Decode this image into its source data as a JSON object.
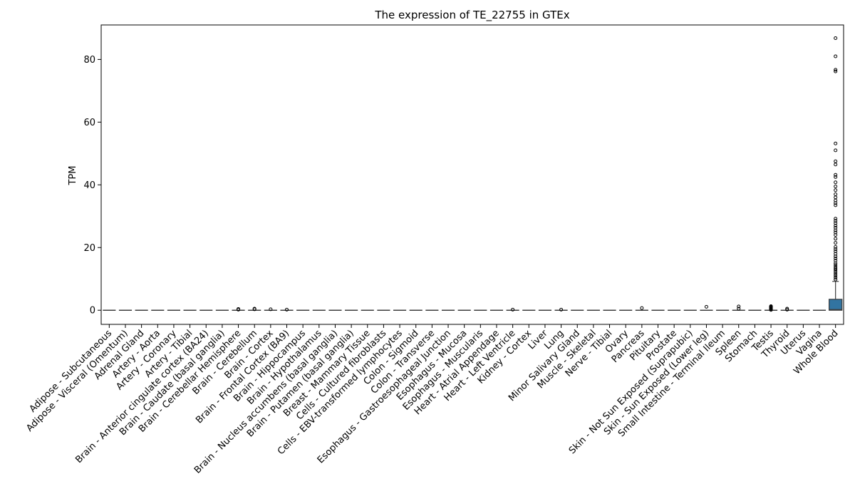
{
  "chart_data": {
    "type": "box",
    "title": "The expression of TE_22755 in GTEx",
    "xlabel": "",
    "ylabel": "TPM",
    "ylim": [
      -4.5,
      91
    ],
    "yticks": [
      0,
      20,
      40,
      60,
      80
    ],
    "grid": false,
    "box_color": "#3274a1",
    "categories": [
      "Adipose - Subcutaneous",
      "Adipose - Visceral (Omentum)",
      "Adrenal Gland",
      "Artery - Aorta",
      "Artery - Coronary",
      "Artery - Tibial",
      "Brain - Anterior cingulate cortex (BA24)",
      "Brain - Caudate (basal ganglia)",
      "Brain - Cerebellar Hemisphere",
      "Brain - Cerebellum",
      "Brain - Cortex",
      "Brain - Frontal Cortex (BA9)",
      "Brain - Hippocampus",
      "Brain - Hypothalamus",
      "Brain - Nucleus accumbens (basal ganglia)",
      "Brain - Putamen (basal ganglia)",
      "Breast - Mammary Tissue",
      "Cells - Cultured fibroblasts",
      "Cells - EBV-transformed lymphocytes",
      "Colon - Sigmoid",
      "Colon - Transverse",
      "Esophagus - Gastroesophageal Junction",
      "Esophagus - Mucosa",
      "Esophagus - Muscularis",
      "Heart - Atrial Appendage",
      "Heart - Left Ventricle",
      "Kidney - Cortex",
      "Liver",
      "Lung",
      "Minor Salivary Gland",
      "Muscle - Skeletal",
      "Nerve - Tibial",
      "Ovary",
      "Pancreas",
      "Pituitary",
      "Prostate",
      "Skin - Not Sun Exposed (Suprapubic)",
      "Skin - Sun Exposed (Lower leg)",
      "Small Intestine - Terminal Ileum",
      "Spleen",
      "Stomach",
      "Testis",
      "Thyroid",
      "Uterus",
      "Vagina",
      "Whole Blood"
    ],
    "boxes": [
      {
        "q1": 0,
        "median": 0,
        "q3": 0,
        "whislo": 0,
        "whishi": 0,
        "fliers": []
      },
      {
        "q1": 0,
        "median": 0,
        "q3": 0,
        "whislo": 0,
        "whishi": 0,
        "fliers": []
      },
      {
        "q1": 0,
        "median": 0,
        "q3": 0,
        "whislo": 0,
        "whishi": 0,
        "fliers": []
      },
      {
        "q1": 0,
        "median": 0,
        "q3": 0,
        "whislo": 0,
        "whishi": 0,
        "fliers": []
      },
      {
        "q1": 0,
        "median": 0,
        "q3": 0,
        "whislo": 0,
        "whishi": 0,
        "fliers": []
      },
      {
        "q1": 0,
        "median": 0,
        "q3": 0,
        "whislo": 0,
        "whishi": 0,
        "fliers": []
      },
      {
        "q1": 0,
        "median": 0,
        "q3": 0,
        "whislo": 0,
        "whishi": 0,
        "fliers": []
      },
      {
        "q1": 0,
        "median": 0,
        "q3": 0,
        "whislo": 0,
        "whishi": 0,
        "fliers": []
      },
      {
        "q1": 0,
        "median": 0,
        "q3": 0,
        "whislo": 0,
        "whishi": 0,
        "fliers": [
          0.2,
          0.4
        ]
      },
      {
        "q1": 0,
        "median": 0,
        "q3": 0,
        "whislo": 0,
        "whishi": 0,
        "fliers": [
          0.3,
          0.5
        ]
      },
      {
        "q1": 0,
        "median": 0,
        "q3": 0,
        "whislo": 0,
        "whishi": 0,
        "fliers": [
          0.3
        ]
      },
      {
        "q1": 0,
        "median": 0,
        "q3": 0,
        "whislo": 0,
        "whishi": 0,
        "fliers": [
          0.2
        ]
      },
      {
        "q1": 0,
        "median": 0,
        "q3": 0,
        "whislo": 0,
        "whishi": 0,
        "fliers": []
      },
      {
        "q1": 0,
        "median": 0,
        "q3": 0,
        "whislo": 0,
        "whishi": 0,
        "fliers": []
      },
      {
        "q1": 0,
        "median": 0,
        "q3": 0,
        "whislo": 0,
        "whishi": 0,
        "fliers": []
      },
      {
        "q1": 0,
        "median": 0,
        "q3": 0,
        "whislo": 0,
        "whishi": 0,
        "fliers": []
      },
      {
        "q1": 0,
        "median": 0,
        "q3": 0,
        "whislo": 0,
        "whishi": 0,
        "fliers": []
      },
      {
        "q1": 0,
        "median": 0,
        "q3": 0,
        "whislo": 0,
        "whishi": 0,
        "fliers": []
      },
      {
        "q1": 0,
        "median": 0,
        "q3": 0,
        "whislo": 0,
        "whishi": 0,
        "fliers": []
      },
      {
        "q1": 0,
        "median": 0,
        "q3": 0,
        "whislo": 0,
        "whishi": 0,
        "fliers": []
      },
      {
        "q1": 0,
        "median": 0,
        "q3": 0,
        "whislo": 0,
        "whishi": 0,
        "fliers": []
      },
      {
        "q1": 0,
        "median": 0,
        "q3": 0,
        "whislo": 0,
        "whishi": 0,
        "fliers": []
      },
      {
        "q1": 0,
        "median": 0,
        "q3": 0,
        "whislo": 0,
        "whishi": 0,
        "fliers": []
      },
      {
        "q1": 0,
        "median": 0,
        "q3": 0,
        "whislo": 0,
        "whishi": 0,
        "fliers": []
      },
      {
        "q1": 0,
        "median": 0,
        "q3": 0,
        "whislo": 0,
        "whishi": 0,
        "fliers": []
      },
      {
        "q1": 0,
        "median": 0,
        "q3": 0,
        "whislo": 0,
        "whishi": 0,
        "fliers": [
          0.2
        ]
      },
      {
        "q1": 0,
        "median": 0,
        "q3": 0,
        "whislo": 0,
        "whishi": 0,
        "fliers": []
      },
      {
        "q1": 0,
        "median": 0,
        "q3": 0,
        "whislo": 0,
        "whishi": 0,
        "fliers": []
      },
      {
        "q1": 0,
        "median": 0,
        "q3": 0,
        "whislo": 0,
        "whishi": 0,
        "fliers": [
          0.2
        ]
      },
      {
        "q1": 0,
        "median": 0,
        "q3": 0,
        "whislo": 0,
        "whishi": 0,
        "fliers": []
      },
      {
        "q1": 0,
        "median": 0,
        "q3": 0,
        "whislo": 0,
        "whishi": 0,
        "fliers": []
      },
      {
        "q1": 0,
        "median": 0,
        "q3": 0,
        "whislo": 0,
        "whishi": 0,
        "fliers": []
      },
      {
        "q1": 0,
        "median": 0,
        "q3": 0,
        "whislo": 0,
        "whishi": 0,
        "fliers": []
      },
      {
        "q1": 0,
        "median": 0,
        "q3": 0,
        "whislo": 0,
        "whishi": 0,
        "fliers": [
          0.7
        ]
      },
      {
        "q1": 0,
        "median": 0,
        "q3": 0,
        "whislo": 0,
        "whishi": 0,
        "fliers": []
      },
      {
        "q1": 0,
        "median": 0,
        "q3": 0,
        "whislo": 0,
        "whishi": 0,
        "fliers": []
      },
      {
        "q1": 0,
        "median": 0,
        "q3": 0,
        "whislo": 0,
        "whishi": 0,
        "fliers": []
      },
      {
        "q1": 0,
        "median": 0,
        "q3": 0,
        "whislo": 0,
        "whishi": 0,
        "fliers": [
          1.1
        ]
      },
      {
        "q1": 0,
        "median": 0,
        "q3": 0,
        "whislo": 0,
        "whishi": 0,
        "fliers": []
      },
      {
        "q1": 0,
        "median": 0,
        "q3": 0,
        "whislo": 0,
        "whishi": 0,
        "fliers": [
          0.5,
          1.2
        ]
      },
      {
        "q1": 0,
        "median": 0,
        "q3": 0,
        "whislo": 0,
        "whishi": 0,
        "fliers": []
      },
      {
        "q1": 0,
        "median": 0,
        "q3": 0,
        "whislo": 0,
        "whishi": 0,
        "fliers": [
          0.1,
          0.3,
          0.5,
          0.7,
          0.9,
          1.1,
          1.3
        ]
      },
      {
        "q1": 0,
        "median": 0,
        "q3": 0,
        "whislo": 0,
        "whishi": 0,
        "fliers": [
          0.2,
          0.5
        ]
      },
      {
        "q1": 0,
        "median": 0,
        "q3": 0,
        "whislo": 0,
        "whishi": 0,
        "fliers": []
      },
      {
        "q1": 0,
        "median": 0,
        "q3": 0,
        "whislo": 0,
        "whishi": 0,
        "fliers": []
      },
      {
        "q1": 0,
        "median": 0.2,
        "q3": 3.5,
        "whislo": 0,
        "whishi": 9.2,
        "fliers": [
          9.8,
          10.4,
          11.0,
          11.6,
          12.2,
          12.8,
          13.3,
          13.8,
          14.4,
          15.0,
          15.8,
          16.5,
          17.2,
          18.0,
          18.8,
          19.5,
          20.2,
          21.5,
          22.8,
          24.0,
          24.8,
          25.5,
          26.3,
          27.0,
          27.8,
          28.5,
          29.2,
          33.5,
          34.2,
          35.0,
          36.0,
          37.0,
          38.3,
          39.5,
          40.8,
          42.5,
          43.2,
          46.5,
          47.5,
          51.0,
          53.2,
          76.2,
          76.7,
          81.0,
          86.8
        ]
      }
    ]
  }
}
